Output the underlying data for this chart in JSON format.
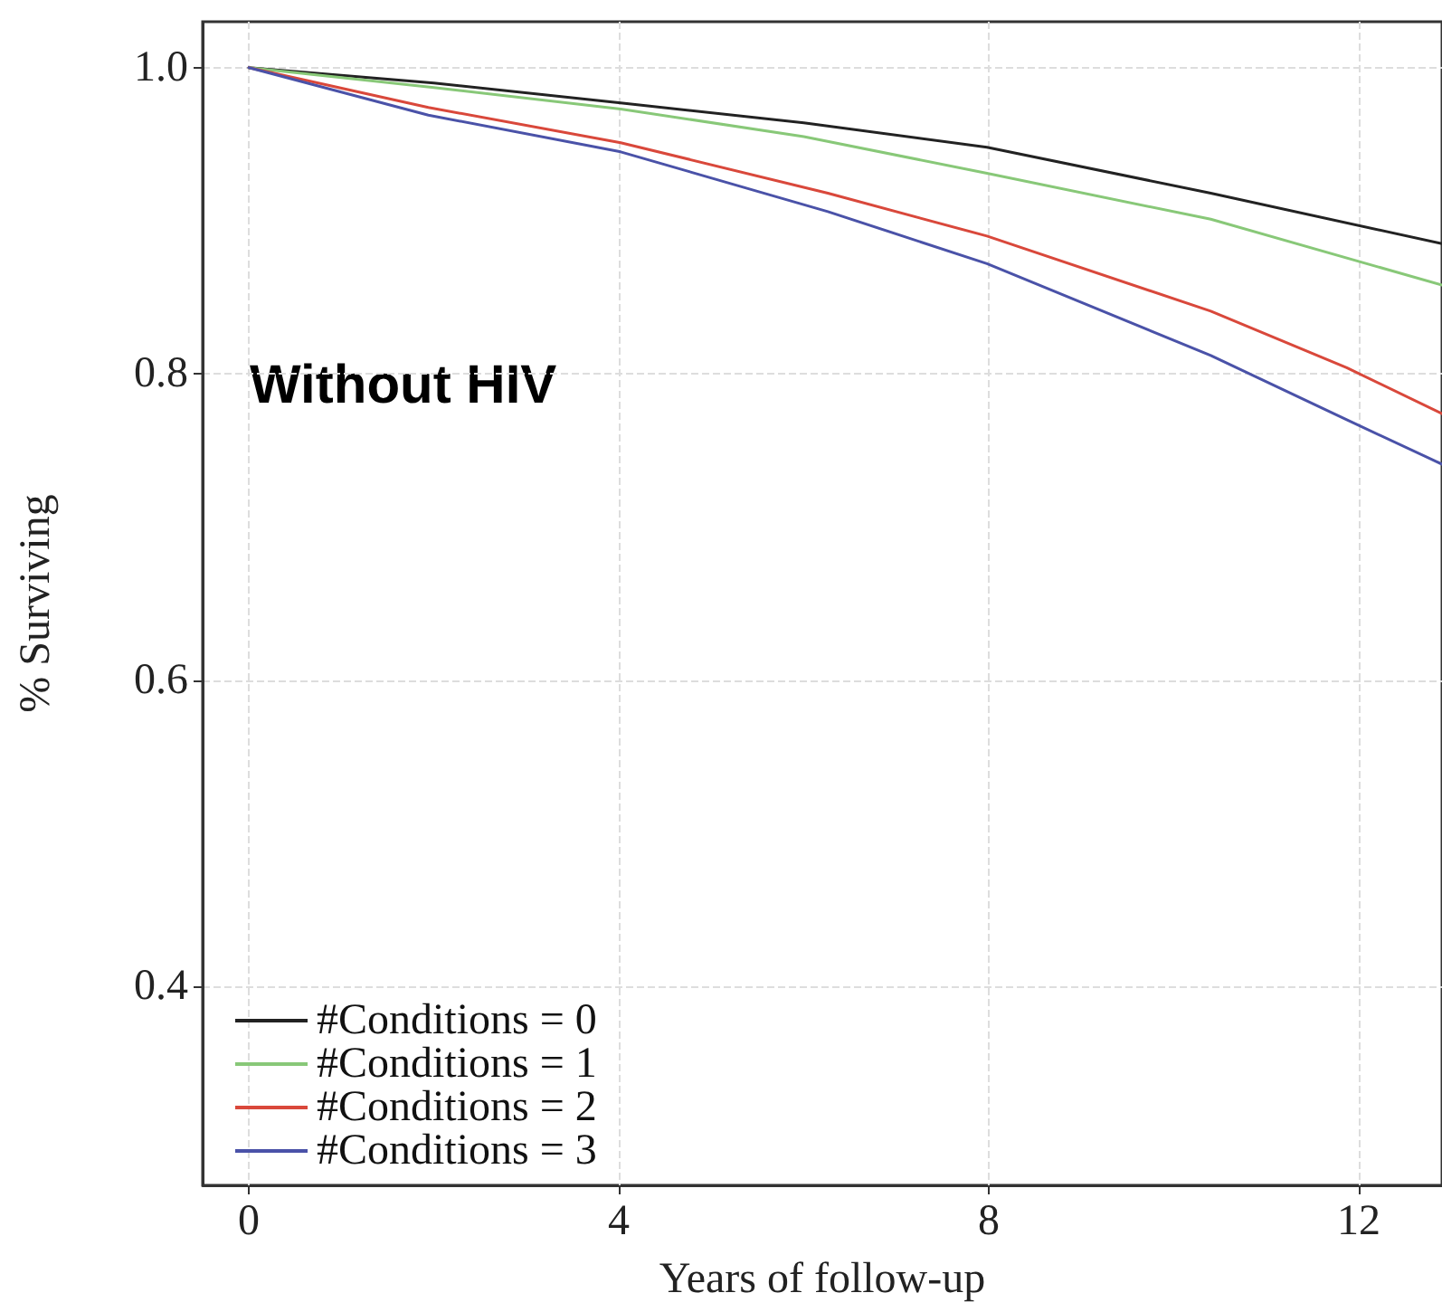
{
  "chart_data": {
    "type": "line",
    "xlabel": "Years of follow-up",
    "ylabel": "% Surviving",
    "annotations": [
      "Without HIV"
    ],
    "xlim": [
      -0.5,
      12.9
    ],
    "ylim": [
      0.27,
      1.03
    ],
    "xticks": [
      0,
      4,
      8,
      12
    ],
    "yticks": [
      0.4,
      0.6,
      0.8,
      {
        "value": 1,
        "label": "1.0"
      }
    ],
    "grid": true,
    "legend": "bottom left",
    "line_style": "solid",
    "marker": "none",
    "series": [
      {
        "name": "#Conditions = 0",
        "color": "#222222",
        "x": [
          0,
          2,
          4.02,
          6,
          7.98,
          10.4,
          12.9
        ],
        "values": [
          1.0,
          0.99,
          0.977,
          0.964,
          0.948,
          0.918,
          0.885
        ]
      },
      {
        "name": "#Conditions = 1",
        "color": "#88c878",
        "x": [
          0,
          2,
          4.02,
          6,
          7.98,
          10.4,
          12.9
        ],
        "values": [
          1.0,
          0.987,
          0.973,
          0.955,
          0.931,
          0.901,
          0.858
        ]
      },
      {
        "name": "#Conditions = 2",
        "color": "#d9483b",
        "x": [
          0,
          1.94,
          4.02,
          6.26,
          7.98,
          10.4,
          11.87,
          12.9
        ],
        "values": [
          1.0,
          0.974,
          0.951,
          0.918,
          0.89,
          0.841,
          0.804,
          0.774
        ]
      },
      {
        "name": "#Conditions = 3",
        "color": "#4a52a8",
        "x": [
          0,
          1.94,
          4.02,
          6.26,
          7.98,
          10.4,
          11.87,
          12.9
        ],
        "values": [
          1.0,
          0.969,
          0.945,
          0.906,
          0.872,
          0.812,
          0.77,
          0.741
        ]
      }
    ]
  }
}
